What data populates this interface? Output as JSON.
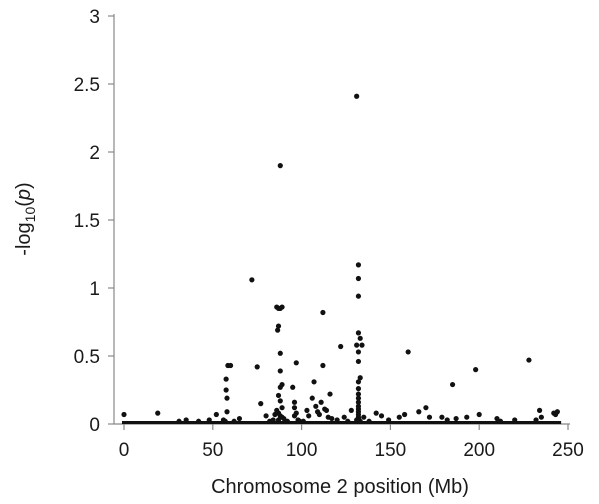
{
  "chart_data": {
    "type": "scatter",
    "title": "",
    "xlabel": "Chromosome 2 position (Mb)",
    "ylabel_parts": {
      "prefix": "-log",
      "subscript": "10",
      "open": "(",
      "italic": "p",
      "close": ")"
    },
    "xlim": [
      0,
      250
    ],
    "ylim": [
      0,
      3
    ],
    "xticks": [
      0,
      50,
      100,
      150,
      200,
      250
    ],
    "yticks": [
      0,
      0.5,
      1,
      1.5,
      2,
      2.5,
      3
    ],
    "xtick_labels": [
      "0",
      "50",
      "100",
      "150",
      "200",
      "250"
    ],
    "ytick_labels": [
      "0",
      "0.5",
      "1",
      "1.5",
      "2",
      "2.5",
      "3"
    ],
    "grid": false,
    "series": [
      {
        "color": "#111111",
        "points": [
          [
            0,
            0.07
          ],
          [
            19,
            0.08
          ],
          [
            31,
            0.02
          ],
          [
            35,
            0.03
          ],
          [
            42,
            0.02
          ],
          [
            48,
            0.03
          ],
          [
            52,
            0.07
          ],
          [
            56,
            0.03
          ],
          [
            57,
            0.02
          ],
          [
            57.5,
            0.25
          ],
          [
            57.5,
            0.33
          ],
          [
            58,
            0.19
          ],
          [
            58.5,
            0.43
          ],
          [
            60,
            0.43
          ],
          [
            58,
            0.09
          ],
          [
            62,
            0.02
          ],
          [
            65,
            0.04
          ],
          [
            72,
            1.06
          ],
          [
            75,
            0.42
          ],
          [
            77,
            0.15
          ],
          [
            80,
            0.06
          ],
          [
            82,
            0.02
          ],
          [
            84,
            0.03
          ],
          [
            86,
            0.86
          ],
          [
            87,
            0.85
          ],
          [
            88,
            0.85
          ],
          [
            89,
            0.86
          ],
          [
            86.5,
            0.69
          ],
          [
            87,
            0.72
          ],
          [
            88,
            0.52
          ],
          [
            88,
            1.9
          ],
          [
            88,
            0.39
          ],
          [
            89,
            0.29
          ],
          [
            88,
            0.27
          ],
          [
            87,
            0.21
          ],
          [
            88,
            0.17
          ],
          [
            89,
            0.12
          ],
          [
            86,
            0.1
          ],
          [
            87,
            0.08
          ],
          [
            88,
            0.06
          ],
          [
            89,
            0.05
          ],
          [
            90,
            0.04
          ],
          [
            87,
            0.03
          ],
          [
            85,
            0.07
          ],
          [
            92,
            0.02
          ],
          [
            95,
            0.27
          ],
          [
            96,
            0.16
          ],
          [
            96,
            0.12
          ],
          [
            97,
            0.08
          ],
          [
            96,
            0.06
          ],
          [
            97,
            0.45
          ],
          [
            98,
            0.03
          ],
          [
            99,
            0.02
          ],
          [
            101,
            0.02
          ],
          [
            103,
            0.1
          ],
          [
            104,
            0.06
          ],
          [
            106,
            0.19
          ],
          [
            107,
            0.31
          ],
          [
            108,
            0.13
          ],
          [
            109,
            0.09
          ],
          [
            110,
            0.07
          ],
          [
            111,
            0.16
          ],
          [
            112,
            0.82
          ],
          [
            112,
            0.43
          ],
          [
            113,
            0.11
          ],
          [
            114,
            0.1
          ],
          [
            115,
            0.05
          ],
          [
            116,
            0.22
          ],
          [
            117,
            0.04
          ],
          [
            120,
            0.03
          ],
          [
            122,
            0.57
          ],
          [
            124,
            0.05
          ],
          [
            126,
            0.02
          ],
          [
            128,
            0.1
          ],
          [
            131,
            2.41
          ],
          [
            132,
            1.17
          ],
          [
            132,
            1.07
          ],
          [
            132,
            0.94
          ],
          [
            132,
            0.67
          ],
          [
            133,
            0.63
          ],
          [
            131,
            0.58
          ],
          [
            132,
            0.53
          ],
          [
            132,
            0.46
          ],
          [
            133,
            0.34
          ],
          [
            132,
            0.31
          ],
          [
            132,
            0.26
          ],
          [
            132,
            0.22
          ],
          [
            132,
            0.19
          ],
          [
            132,
            0.16
          ],
          [
            132,
            0.13
          ],
          [
            132,
            0.11
          ],
          [
            132,
            0.09
          ],
          [
            132,
            0.07
          ],
          [
            132,
            0.05
          ],
          [
            132,
            0.04
          ],
          [
            131,
            0.03
          ],
          [
            133,
            0.02
          ],
          [
            134,
            0.58
          ],
          [
            135,
            0.05
          ],
          [
            138,
            0.02
          ],
          [
            142,
            0.08
          ],
          [
            145,
            0.06
          ],
          [
            149,
            0.03
          ],
          [
            155,
            0.05
          ],
          [
            158,
            0.07
          ],
          [
            160,
            0.53
          ],
          [
            166,
            0.09
          ],
          [
            170,
            0.12
          ],
          [
            172,
            0.05
          ],
          [
            179,
            0.05
          ],
          [
            182,
            0.03
          ],
          [
            185,
            0.29
          ],
          [
            187,
            0.04
          ],
          [
            193,
            0.05
          ],
          [
            198,
            0.4
          ],
          [
            200,
            0.07
          ],
          [
            210,
            0.04
          ],
          [
            212,
            0.02
          ],
          [
            220,
            0.03
          ],
          [
            228,
            0.47
          ],
          [
            232,
            0.03
          ],
          [
            234,
            0.1
          ],
          [
            235,
            0.05
          ],
          [
            242,
            0.08
          ],
          [
            243,
            0.07
          ],
          [
            244,
            0.09
          ]
        ]
      }
    ]
  }
}
